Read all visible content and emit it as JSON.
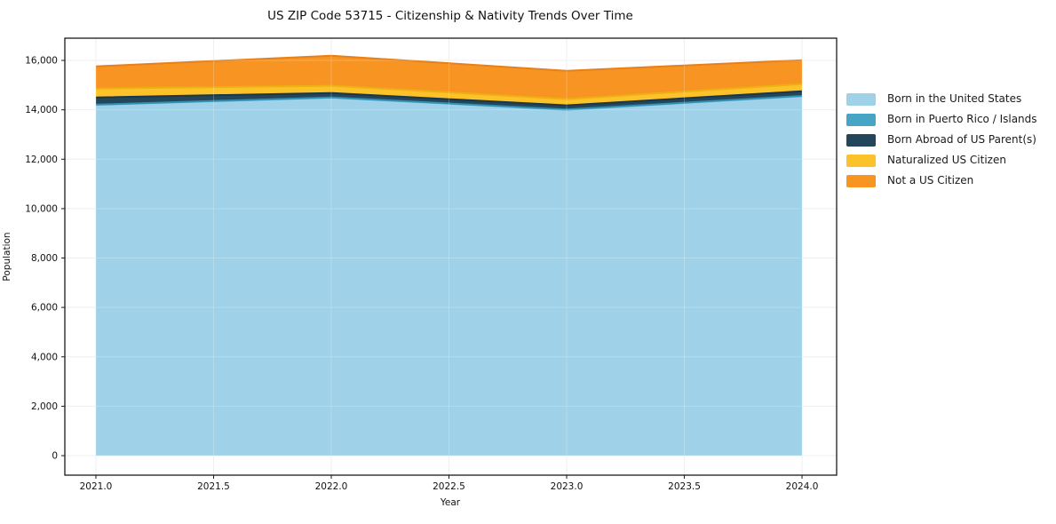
{
  "chart_data": {
    "type": "area",
    "stacked": true,
    "title": "US ZIP Code 53715 - Citizenship & Nativity Trends Over Time",
    "xlabel": "Year",
    "ylabel": "Population",
    "x": [
      2021,
      2022,
      2023,
      2024
    ],
    "series": [
      {
        "name": "Born in the United States",
        "color": "#9fd2e8",
        "edge": "#7cbcdb",
        "values": [
          14200,
          14490,
          14000,
          14550
        ]
      },
      {
        "name": "Born in Puerto Rico / Islands",
        "color": "#46a5c4",
        "edge": "#3191b4",
        "values": [
          12,
          12,
          12,
          12
        ]
      },
      {
        "name": "Born Abroad of US Parent(s)",
        "color": "#24465a",
        "edge": "#1b3646",
        "values": [
          290,
          180,
          170,
          190
        ]
      },
      {
        "name": "Naturalized US Citizen",
        "color": "#fcc22a",
        "edge": "#edb113",
        "values": [
          360,
          290,
          250,
          290
        ]
      },
      {
        "name": "Not a US Citizen",
        "color": "#f79422",
        "edge": "#e8801a",
        "values": [
          900,
          1220,
          1150,
          970
        ]
      }
    ],
    "stacked_totals": [
      15762,
      16192,
      15582,
      16002
    ],
    "xticks": [
      2021.0,
      2021.5,
      2022.0,
      2022.5,
      2023.0,
      2023.5,
      2024.0
    ],
    "xtick_labels": [
      "2021.0",
      "2021.5",
      "2022.0",
      "2022.5",
      "2023.0",
      "2023.5",
      "2024.0"
    ],
    "yticks": [
      0,
      2000,
      4000,
      6000,
      8000,
      10000,
      12000,
      14000,
      16000
    ],
    "ytick_labels": [
      "0",
      "2,000",
      "4,000",
      "6,000",
      "8,000",
      "10,000",
      "12,000",
      "14,000",
      "16,000"
    ],
    "xlim": [
      2020.868,
      2024.147
    ],
    "ylim": [
      -790,
      16900
    ],
    "grid": true,
    "grid_color": "#ebebeb",
    "axis_color": "#1a1a1a",
    "legend_position": "outside-right-top"
  }
}
